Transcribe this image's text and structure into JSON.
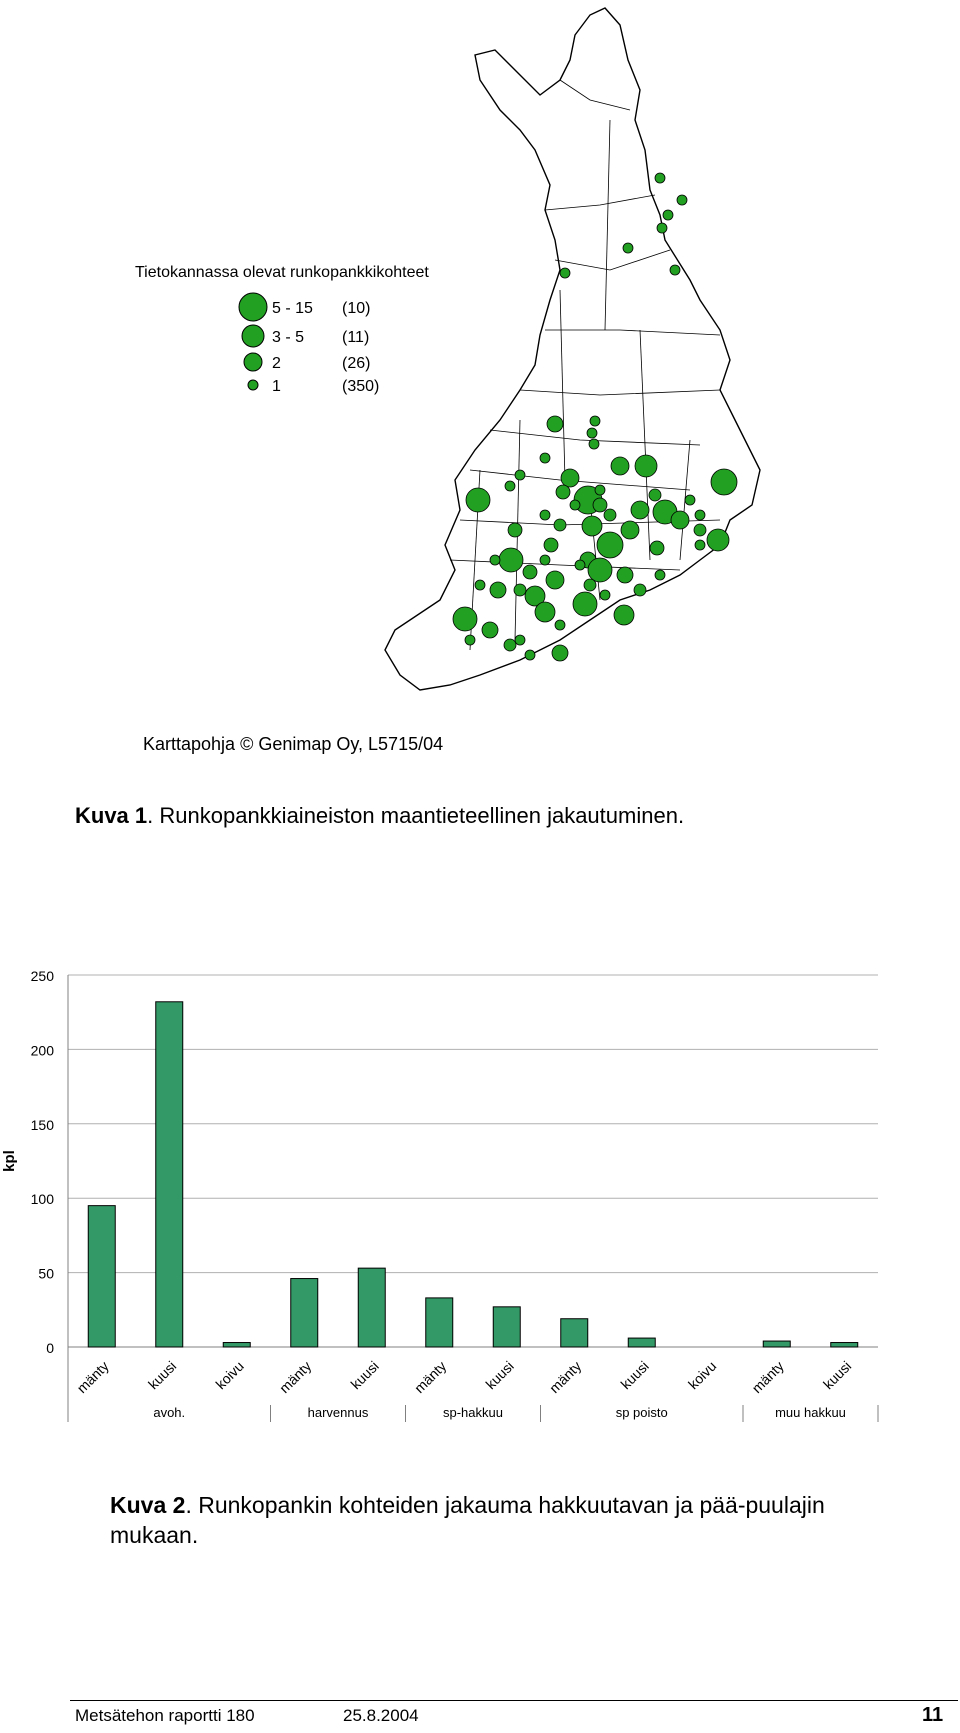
{
  "map": {
    "legend_title": "Tietokannassa olevat runkopankkikohteet",
    "legend": [
      {
        "range": "5 - 15",
        "count": "(10)"
      },
      {
        "range": "3 -  5",
        "count": "(11)"
      },
      {
        "range": "2",
        "count": "(26)"
      },
      {
        "range": "1",
        "count": "(350)"
      }
    ],
    "dot_color": "#22a022",
    "credit": "Karttapohja © Genimap Oy, L5715/04"
  },
  "caption1": {
    "label": "Kuva 1",
    "text": ". Runkopankkiaineiston maantieteellinen jakautuminen."
  },
  "chart_data": {
    "type": "bar",
    "ylabel": "kpl",
    "ylim": [
      0,
      250
    ],
    "yticks": [
      0,
      50,
      100,
      150,
      200,
      250
    ],
    "grid": true,
    "bar_color": "#339966",
    "categories": [
      "mänty",
      "kuusi",
      "koivu",
      "mänty",
      "kuusi",
      "mänty",
      "kuusi",
      "mänty",
      "kuusi",
      "koivu",
      "mänty",
      "kuusi"
    ],
    "values": [
      95,
      232,
      3,
      46,
      53,
      33,
      27,
      19,
      6,
      0,
      4,
      3
    ],
    "groups": [
      {
        "name": "avoh.",
        "size": 3
      },
      {
        "name": "harvennus",
        "size": 2
      },
      {
        "name": "sp-hakkuu",
        "size": 2
      },
      {
        "name": "sp poisto",
        "size": 3
      },
      {
        "name": "muu hakkuu",
        "size": 2
      }
    ]
  },
  "caption2": {
    "label": "Kuva 2",
    "text": ".  Runkopankin kohteiden jakauma hakkuutavan ja pää-puulajin mukaan."
  },
  "footer": {
    "report": "Metsätehon raportti 180",
    "date": "25.8.2004",
    "page": "11"
  }
}
